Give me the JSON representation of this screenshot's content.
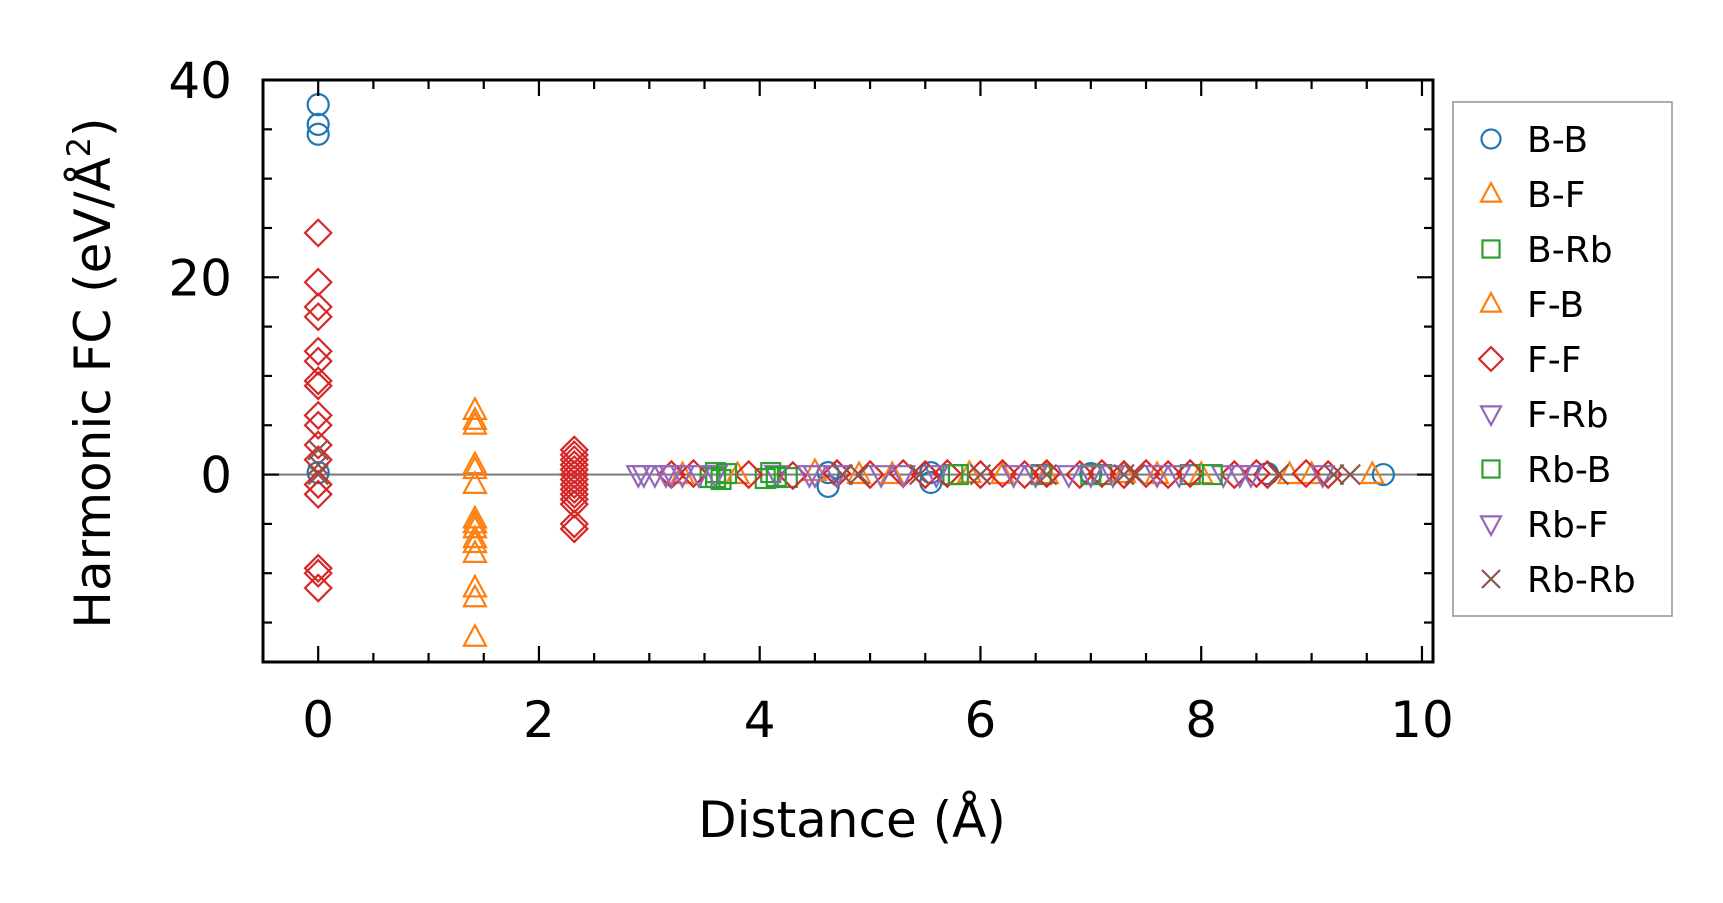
{
  "chart_data": {
    "type": "scatter",
    "xlabel": "Distance (Å)",
    "ylabel": "Harmonic FC (eV/Å²)",
    "ylabel_base": "Harmonic FC (eV/Å",
    "ylabel_sup": "2",
    "ylabel_end": ")",
    "xlim": [
      -0.5,
      10.1
    ],
    "ylim": [
      -19,
      40
    ],
    "xticks": [
      0,
      2,
      4,
      6,
      8,
      10
    ],
    "xtick_labels": [
      "0",
      "2",
      "4",
      "6",
      "8",
      "10"
    ],
    "yticks": [
      0,
      20,
      40
    ],
    "ytick_labels": [
      "0",
      "20",
      "40"
    ],
    "zero_line": true,
    "grid": false,
    "legend_position": "outside-right",
    "series": [
      {
        "name": "B-B",
        "marker": "circle",
        "color": "#1f77b4",
        "filled": false,
        "points": [
          [
            0,
            37.5
          ],
          [
            0,
            35.5
          ],
          [
            0,
            34.5
          ],
          [
            0,
            0.2
          ],
          [
            4.62,
            -1.2
          ],
          [
            4.62,
            0.2
          ],
          [
            5.55,
            -0.8
          ],
          [
            5.55,
            0.2
          ],
          [
            7.0,
            0.1
          ],
          [
            8.6,
            0.1
          ],
          [
            9.65,
            0.0
          ]
        ]
      },
      {
        "name": "B-F",
        "marker": "triangle-up",
        "color": "#ff7f0e",
        "filled": false,
        "points": [
          [
            1.42,
            6.5
          ],
          [
            1.42,
            5.5
          ],
          [
            1.42,
            1.0
          ],
          [
            1.42,
            -1.0
          ],
          [
            1.42,
            -4.5
          ],
          [
            1.42,
            -5.5
          ],
          [
            1.42,
            -6.5
          ],
          [
            1.42,
            -8.0
          ],
          [
            1.42,
            -11.5
          ],
          [
            1.42,
            -12.5
          ],
          [
            1.42,
            -16.5
          ],
          [
            3.3,
            0.0
          ],
          [
            4.5,
            0.3
          ],
          [
            5.2,
            0.0
          ],
          [
            5.9,
            0.1
          ],
          [
            6.6,
            0.0
          ],
          [
            7.3,
            0.1
          ],
          [
            8.0,
            0.0
          ],
          [
            8.8,
            0.0
          ],
          [
            9.55,
            0.0
          ]
        ]
      },
      {
        "name": "B-Rb",
        "marker": "square",
        "color": "#2ca02c",
        "filled": false,
        "points": [
          [
            3.55,
            -0.3
          ],
          [
            3.6,
            0.2
          ],
          [
            3.65,
            -0.5
          ],
          [
            4.05,
            -0.4
          ],
          [
            4.1,
            0.2
          ],
          [
            4.25,
            -0.3
          ],
          [
            5.75,
            0.0
          ],
          [
            6.55,
            0.0
          ],
          [
            7.1,
            0.0
          ],
          [
            7.9,
            0.0
          ]
        ]
      },
      {
        "name": "F-B",
        "marker": "triangle-up",
        "color": "#ff7f0e",
        "filled": false,
        "points": [
          [
            1.42,
            5.0
          ],
          [
            1.42,
            0.5
          ],
          [
            1.42,
            -5.0
          ],
          [
            1.42,
            -7.0
          ],
          [
            3.8,
            0.0
          ],
          [
            4.9,
            0.0
          ],
          [
            6.2,
            0.0
          ],
          [
            7.6,
            0.0
          ],
          [
            9.0,
            0.0
          ]
        ]
      },
      {
        "name": "F-F",
        "marker": "diamond",
        "color": "#d62728",
        "filled": false,
        "points": [
          [
            0,
            24.5
          ],
          [
            0,
            19.5
          ],
          [
            0,
            17.0
          ],
          [
            0,
            16.0
          ],
          [
            0,
            12.5
          ],
          [
            0,
            11.5
          ],
          [
            0,
            9.5
          ],
          [
            0,
            9.0
          ],
          [
            0,
            6.0
          ],
          [
            0,
            5.0
          ],
          [
            0,
            3.0
          ],
          [
            0,
            1.5
          ],
          [
            0,
            -1.0
          ],
          [
            0,
            -2.0
          ],
          [
            0,
            -9.5
          ],
          [
            0,
            -10.0
          ],
          [
            0,
            -11.5
          ],
          [
            2.32,
            2.5
          ],
          [
            2.32,
            2.0
          ],
          [
            2.32,
            1.5
          ],
          [
            2.32,
            1.0
          ],
          [
            2.32,
            0.5
          ],
          [
            2.32,
            0.0
          ],
          [
            2.32,
            -0.5
          ],
          [
            2.32,
            -1.0
          ],
          [
            2.32,
            -1.5
          ],
          [
            2.32,
            -2.0
          ],
          [
            2.32,
            -2.5
          ],
          [
            2.32,
            -3.0
          ],
          [
            2.32,
            -5.0
          ],
          [
            2.32,
            -5.5
          ],
          [
            3.2,
            0.0
          ],
          [
            3.4,
            0.1
          ],
          [
            3.9,
            0.0
          ],
          [
            4.3,
            -0.1
          ],
          [
            4.7,
            0.1
          ],
          [
            5.0,
            0.0
          ],
          [
            5.3,
            0.1
          ],
          [
            5.5,
            0.0
          ],
          [
            5.7,
            0.1
          ],
          [
            6.0,
            0.0
          ],
          [
            6.2,
            0.1
          ],
          [
            6.4,
            0.0
          ],
          [
            6.6,
            0.1
          ],
          [
            6.9,
            0.0
          ],
          [
            7.1,
            0.1
          ],
          [
            7.3,
            0.0
          ],
          [
            7.5,
            0.1
          ],
          [
            7.7,
            0.0
          ],
          [
            7.9,
            0.1
          ],
          [
            8.3,
            0.0
          ],
          [
            8.5,
            0.1
          ],
          [
            8.6,
            0.0
          ],
          [
            8.95,
            0.1
          ],
          [
            9.15,
            0.0
          ]
        ]
      },
      {
        "name": "F-Rb",
        "marker": "triangle-down",
        "color": "#9467bd",
        "filled": false,
        "points": [
          [
            2.9,
            0.0
          ],
          [
            3.05,
            0.0
          ],
          [
            3.15,
            0.0
          ],
          [
            3.3,
            0.0
          ],
          [
            3.6,
            0.0
          ],
          [
            4.15,
            0.0
          ],
          [
            4.45,
            0.0
          ],
          [
            4.7,
            0.0
          ],
          [
            5.3,
            0.0
          ],
          [
            6.3,
            0.0
          ],
          [
            6.8,
            0.0
          ],
          [
            7.2,
            0.0
          ],
          [
            7.6,
            0.0
          ],
          [
            8.2,
            0.0
          ],
          [
            8.45,
            0.0
          ]
        ]
      },
      {
        "name": "Rb-B",
        "marker": "square",
        "color": "#2ca02c",
        "filled": false,
        "points": [
          [
            3.6,
            -0.3
          ],
          [
            3.7,
            0.1
          ],
          [
            4.15,
            -0.2
          ],
          [
            5.8,
            0.0
          ],
          [
            7.0,
            0.0
          ],
          [
            8.1,
            0.0
          ]
        ]
      },
      {
        "name": "Rb-F",
        "marker": "triangle-down",
        "color": "#9467bd",
        "filled": false,
        "points": [
          [
            2.95,
            0.0
          ],
          [
            3.2,
            0.0
          ],
          [
            3.45,
            0.0
          ],
          [
            4.5,
            0.0
          ],
          [
            5.1,
            0.0
          ],
          [
            5.6,
            0.0
          ],
          [
            6.5,
            0.0
          ],
          [
            7.0,
            0.0
          ],
          [
            7.8,
            0.0
          ],
          [
            8.35,
            0.0
          ],
          [
            9.1,
            0.0
          ]
        ]
      },
      {
        "name": "Rb-Rb",
        "marker": "x",
        "color": "#8c564b",
        "filled": false,
        "points": [
          [
            0,
            2.5
          ],
          [
            0,
            1.0
          ],
          [
            0,
            0.0
          ],
          [
            4.75,
            0.0
          ],
          [
            4.9,
            0.0
          ],
          [
            5.45,
            0.0
          ],
          [
            6.0,
            0.0
          ],
          [
            6.6,
            0.0
          ],
          [
            7.3,
            0.0
          ],
          [
            7.4,
            0.0
          ],
          [
            8.7,
            0.0
          ],
          [
            9.2,
            0.0
          ],
          [
            9.35,
            0.0
          ]
        ]
      }
    ]
  }
}
